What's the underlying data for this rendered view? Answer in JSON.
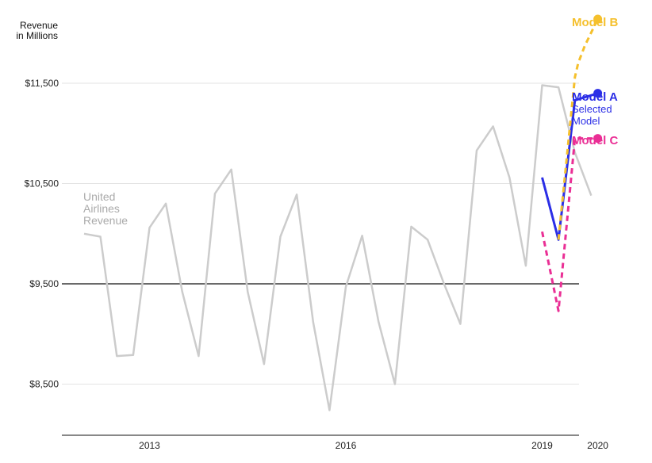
{
  "chart_data": {
    "type": "line",
    "title": "",
    "ylabel_lines": [
      "Revenue",
      "in Millions"
    ],
    "xlabel": "",
    "x_ticks": [
      {
        "label": "2013",
        "x": 2013.0
      },
      {
        "label": "2016",
        "x": 2016.0
      },
      {
        "label": "2019",
        "x": 2019.0
      },
      {
        "label": "2020",
        "x": 2019.85
      }
    ],
    "y_ticks": [
      {
        "label": "$8,500",
        "value": 8500
      },
      {
        "label": "$9,500",
        "value": 9500
      },
      {
        "label": "$10,500",
        "value": 10500
      },
      {
        "label": "$11,500",
        "value": 11500
      }
    ],
    "ylim": [
      8000,
      12200
    ],
    "xlim": [
      2011.65,
      2020.3
    ],
    "baseline_value": 9500,
    "grid": true,
    "series": [
      {
        "name": "United Airlines Revenue",
        "label_lines": [
          "United",
          "Airlines",
          "Revenue"
        ],
        "color": "#cccccc",
        "style": "solid",
        "end_dot": false,
        "x": [
          2012.0,
          2012.25,
          2012.5,
          2012.75,
          2013.0,
          2013.25,
          2013.5,
          2013.75,
          2014.0,
          2014.25,
          2014.5,
          2014.75,
          2015.0,
          2015.25,
          2015.5,
          2015.75,
          2016.0,
          2016.25,
          2016.5,
          2016.75,
          2017.0,
          2017.25,
          2017.5,
          2017.75,
          2018.0,
          2018.25,
          2018.5,
          2018.75,
          2019.0,
          2019.25,
          2019.5,
          2019.75
        ],
        "y": [
          10000,
          9970,
          8780,
          8790,
          10060,
          10300,
          9420,
          8780,
          10400,
          10640,
          9420,
          8700,
          9970,
          10390,
          9120,
          8240,
          9470,
          9980,
          9120,
          8500,
          10070,
          9940,
          9500,
          9100,
          10830,
          11070,
          10560,
          9680,
          11480,
          11460,
          10810,
          10380
        ]
      },
      {
        "name": "Model A",
        "label_lines": [
          "Model A"
        ],
        "sub_label_lines": [
          "Selected",
          "Model"
        ],
        "color": "#2b2ee6",
        "style": "solid",
        "end_dot": true,
        "x": [
          2019.0,
          2019.25,
          2019.5,
          2019.85
        ],
        "y": [
          10560,
          9940,
          11330,
          11400
        ]
      },
      {
        "name": "Model B",
        "label_lines": [
          "Model B"
        ],
        "color": "#f5c02d",
        "style": "dashed",
        "end_dot": true,
        "x": [
          2019.25,
          2019.5,
          2019.55,
          2019.65,
          2019.85
        ],
        "y": [
          9940,
          11560,
          11700,
          11870,
          12140
        ]
      },
      {
        "name": "Model C",
        "label_lines": [
          "Model C"
        ],
        "color": "#ea2f95",
        "style": "dashed",
        "end_dot": true,
        "x": [
          2019.0,
          2019.25,
          2019.5,
          2019.85
        ],
        "y": [
          10020,
          9230,
          10950,
          10950
        ]
      }
    ]
  }
}
